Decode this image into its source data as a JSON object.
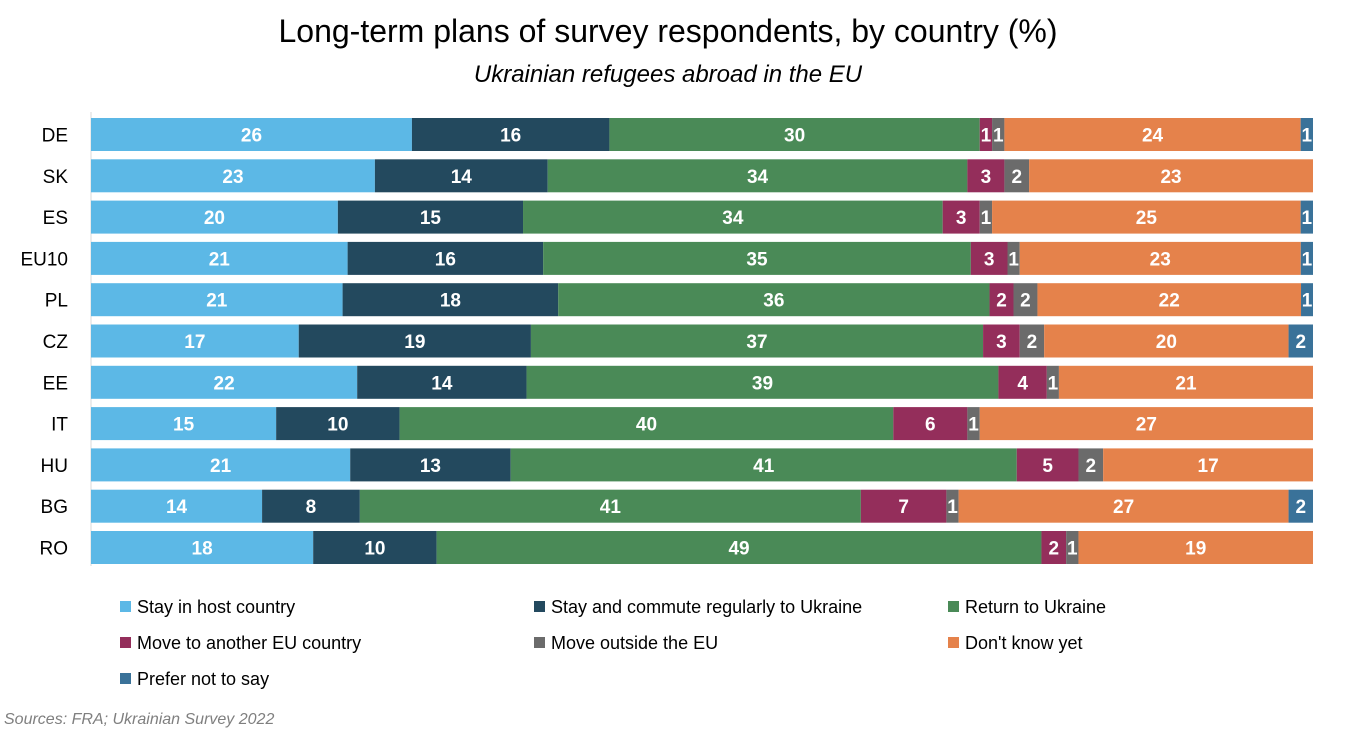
{
  "header": {
    "title": "Long-term plans of survey respondents, by country (%)",
    "subtitle": "Ukrainian refugees abroad in the EU"
  },
  "source": "Sources: FRA; Ukrainian Survey 2022",
  "chart_data": {
    "type": "bar",
    "orientation": "horizontal",
    "stacked": true,
    "title": "Long-term plans of survey respondents, by country (%)",
    "subtitle": "Ukrainian refugees abroad in the EU",
    "xlabel": "",
    "ylabel": "",
    "xlim": [
      0,
      100
    ],
    "grid": false,
    "legend_position": "bottom",
    "categories": [
      "DE",
      "SK",
      "ES",
      "EU10",
      "PL",
      "CZ",
      "EE",
      "IT",
      "HU",
      "BG",
      "RO"
    ],
    "series": [
      {
        "name": "Stay in host country",
        "color": "#5cb8e6",
        "values": [
          26,
          23,
          20,
          21,
          21,
          17,
          22,
          15,
          21,
          14,
          18
        ]
      },
      {
        "name": "Stay and commute regularly to Ukraine",
        "color": "#23495e",
        "values": [
          16,
          14,
          15,
          16,
          18,
          19,
          14,
          10,
          13,
          8,
          10
        ]
      },
      {
        "name": "Return to Ukraine",
        "color": "#4a8a57",
        "values": [
          30,
          34,
          34,
          35,
          36,
          37,
          39,
          40,
          41,
          41,
          49
        ]
      },
      {
        "name": "Move to another EU country",
        "color": "#942e5b",
        "values": [
          1,
          3,
          3,
          3,
          2,
          3,
          4,
          6,
          5,
          7,
          2
        ]
      },
      {
        "name": "Move outside the EU",
        "color": "#6b6b6b",
        "values": [
          1,
          2,
          1,
          1,
          2,
          2,
          1,
          1,
          2,
          1,
          1
        ]
      },
      {
        "name": "Don't know yet",
        "color": "#e5824b",
        "values": [
          24,
          23,
          25,
          23,
          22,
          20,
          21,
          27,
          17,
          27,
          19
        ]
      },
      {
        "name": "Prefer not to say",
        "color": "#3a7299",
        "values": [
          1,
          0,
          1,
          1,
          1,
          2,
          0,
          0,
          0,
          2,
          0
        ]
      }
    ]
  }
}
